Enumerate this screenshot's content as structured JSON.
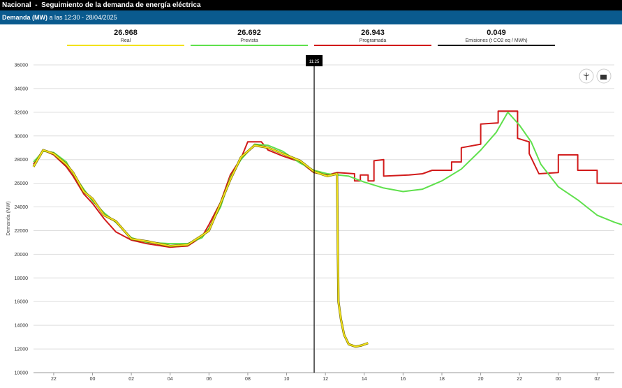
{
  "header": {
    "title": "Nacional  -  Seguimiento de la demanda de energía eléctrica"
  },
  "bar": {
    "title": "Demanda (MW)",
    "subtitle": "a las 12:30 - 28/04/2025"
  },
  "stats": [
    {
      "value": "26.968",
      "label": "Real",
      "color": "#f2e21b"
    },
    {
      "value": "26.692",
      "label": "Prevista",
      "color": "#5fe04c"
    },
    {
      "value": "26.943",
      "label": "Programada",
      "color": "#d11a1a"
    },
    {
      "value": "0.049",
      "label": "Emisiones (t CO2 eq / MWh)",
      "color": "#111111"
    }
  ],
  "chart_data": {
    "type": "line",
    "ylabel": "Demanda (MW)",
    "ylim": [
      10000,
      36000
    ],
    "yticks": [
      10000,
      12000,
      14000,
      16000,
      18000,
      20000,
      22000,
      24000,
      26000,
      28000,
      30000,
      32000,
      34000,
      36000
    ],
    "xlim": [
      20.96,
      51.28
    ],
    "xticks": [
      {
        "value": 22,
        "label": "22"
      },
      {
        "value": 24,
        "label": "00"
      },
      {
        "value": 26,
        "label": "02"
      },
      {
        "value": 28,
        "label": "04"
      },
      {
        "value": 30,
        "label": "06"
      },
      {
        "value": 32,
        "label": "08"
      },
      {
        "value": 34,
        "label": "10"
      },
      {
        "value": 36,
        "label": "12"
      },
      {
        "value": 38,
        "label": "14"
      },
      {
        "value": 40,
        "label": "16"
      },
      {
        "value": 42,
        "label": "18"
      },
      {
        "value": 44,
        "label": "20"
      },
      {
        "value": 46,
        "label": "22"
      },
      {
        "value": 48,
        "label": "00"
      },
      {
        "value": 50,
        "label": "02"
      }
    ],
    "grid": true,
    "marker": {
      "x": 35.42,
      "label": "11:25"
    },
    "series": [
      {
        "name": "Real",
        "color": "#f2e21b",
        "x": [
          20.96,
          21.46,
          22,
          22.65,
          23,
          23.55,
          24,
          24.6,
          25.2,
          26,
          26.8,
          28,
          28.9,
          29.65,
          30,
          30.6,
          31.1,
          31.65,
          32.35,
          33.05,
          33.8,
          34.7,
          35.4,
          36.1,
          36.6,
          36.67,
          36.8,
          36.96,
          37.2,
          37.56,
          37.86,
          38.2
        ],
        "values": [
          27400,
          28800,
          28500,
          27600,
          26900,
          25300,
          24700,
          23300,
          22800,
          21300,
          21100,
          20700,
          20800,
          21600,
          22000,
          24300,
          26300,
          28200,
          29200,
          29000,
          28500,
          27900,
          27000,
          26600,
          26800,
          16000,
          14500,
          13200,
          12400,
          12200,
          12300,
          12500
        ]
      },
      {
        "name": "Prevista",
        "color": "#5fe04c",
        "x": [
          20.96,
          21.46,
          22,
          22.65,
          23,
          23.55,
          24,
          24.6,
          25.2,
          26,
          26.8,
          28,
          28.9,
          29.65,
          30,
          30.6,
          31.1,
          31.65,
          32.35,
          33.05,
          33.8,
          34.7,
          35.4,
          36.1,
          37.2,
          38,
          39,
          40,
          41,
          42,
          43,
          44,
          44.8,
          45.4,
          46,
          46.6,
          47.1,
          48,
          49,
          50,
          50.9,
          51.28
        ],
        "values": [
          27800,
          28700,
          28600,
          27800,
          26800,
          25500,
          24500,
          23500,
          22700,
          21400,
          21000,
          20900,
          20900,
          21400,
          22200,
          24000,
          26500,
          28000,
          29300,
          29200,
          28700,
          27700,
          27100,
          26800,
          26600,
          26100,
          25600,
          25300,
          25500,
          26200,
          27200,
          28800,
          30300,
          32000,
          30900,
          29500,
          27600,
          25700,
          24600,
          23300,
          22700,
          22500
        ]
      },
      {
        "name": "Programada",
        "color": "#d11a1a",
        "x": [
          20.96,
          21.46,
          22,
          22.65,
          23,
          23.55,
          24,
          24.6,
          25.2,
          26,
          26.8,
          28,
          28.9,
          29.65,
          30,
          30.6,
          31.1,
          31.65,
          32.0,
          32.7,
          33.05,
          33.8,
          34.7,
          35.4,
          36.1,
          36.6,
          37.5,
          37.5,
          37.8,
          37.8,
          38.2,
          38.2,
          38.5,
          38.5,
          39.0,
          39.0,
          40.3,
          41.0,
          41.5,
          42.5,
          42.5,
          43.0,
          43.0,
          44.0,
          44.0,
          44.9,
          44.9,
          45.9,
          45.9,
          46.5,
          46.5,
          47.0,
          48.0,
          48.0,
          49.0,
          49.0,
          50.0,
          50.0,
          51.28
        ],
        "values": [
          27600,
          28800,
          28400,
          27400,
          26600,
          25100,
          24300,
          23000,
          21900,
          21200,
          20900,
          20600,
          20700,
          21500,
          22500,
          24400,
          26700,
          28100,
          29500,
          29500,
          28800,
          28300,
          27800,
          26900,
          26700,
          26900,
          26800,
          26200,
          26200,
          26700,
          26700,
          26200,
          26200,
          27900,
          28000,
          26600,
          26700,
          26800,
          27100,
          27100,
          27800,
          27800,
          29000,
          29300,
          31000,
          31100,
          32100,
          32100,
          29800,
          29500,
          28500,
          26800,
          26900,
          28400,
          28400,
          27100,
          27100,
          26000,
          26000
        ]
      }
    ]
  }
}
